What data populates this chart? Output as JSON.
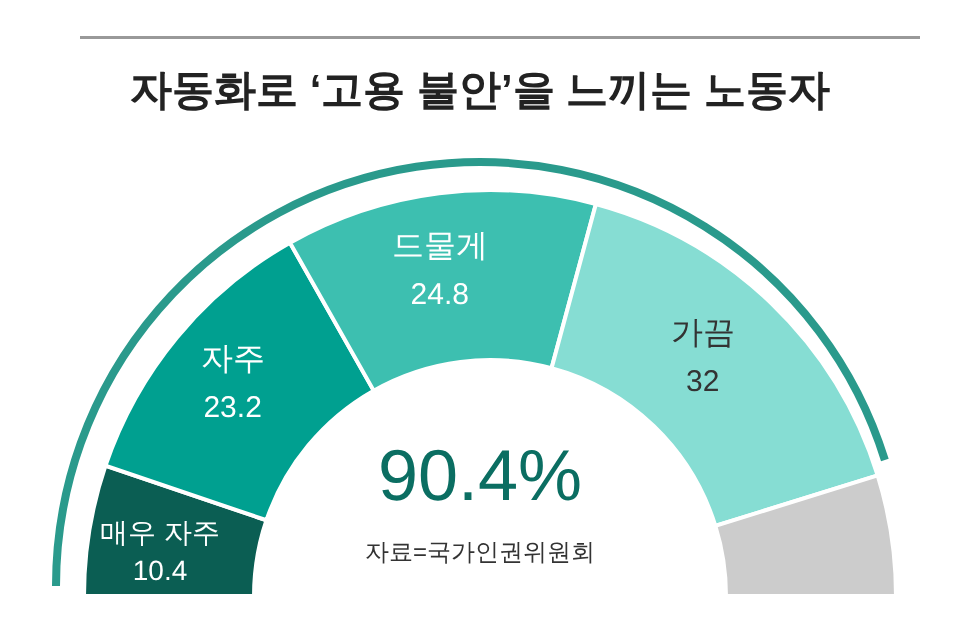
{
  "chart_data": {
    "type": "donut",
    "title": "자동화로 ‘고용 불안’을 느끼는 노동자",
    "categories": [
      "매우 자주",
      "자주",
      "드물게",
      "가끔",
      null
    ],
    "values": [
      10.4,
      23.2,
      24.8,
      32,
      9.6
    ],
    "colors": [
      "#0b5e53",
      "#00a090",
      "#3dbfb0",
      "#86ddd3",
      "#cccccc"
    ],
    "value_labels": [
      "10.4",
      "23.2",
      "24.8",
      "32",
      null
    ],
    "annotations": [
      "90.4%",
      "자료=국가인권위원회"
    ]
  }
}
